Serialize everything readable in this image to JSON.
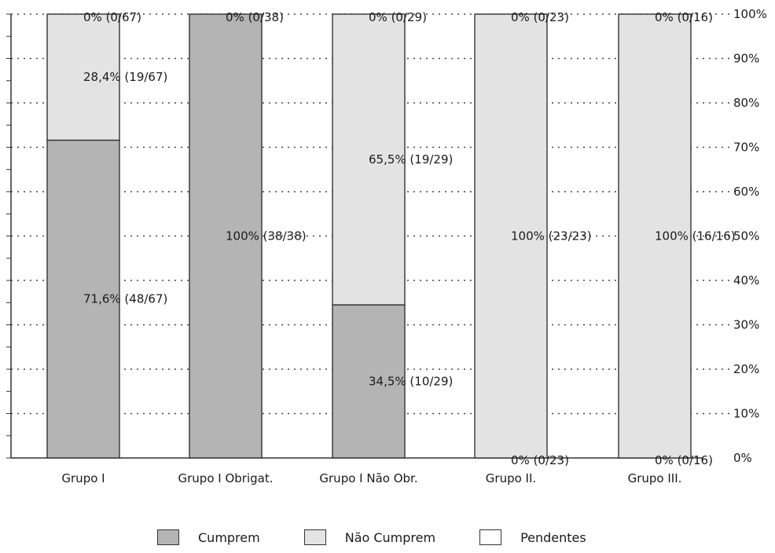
{
  "chart_data": {
    "type": "bar",
    "stacked": true,
    "percent_stacked": true,
    "categories": [
      "Grupo I",
      "Grupo I Obrigat.",
      "Grupo I Não Obr.",
      "Grupo II.",
      "Grupo III."
    ],
    "series": [
      {
        "name": "Cumprem",
        "color": "#b4b4b4",
        "values": [
          71.6,
          100,
          34.5,
          0,
          0
        ],
        "labels": [
          "71,6%  (48/67)",
          "100%  (38/38)",
          "34,5%  (10/29)",
          "0%  (0/23)",
          "0%  (0/16)"
        ]
      },
      {
        "name": "Não Cumprem",
        "color": "#e3e3e3",
        "values": [
          28.4,
          0,
          65.5,
          100,
          100
        ],
        "labels": [
          "28,4%  (19/67)",
          "",
          "65,5%  (19/29)",
          "100%  (23/23)",
          "100%  (16/16)"
        ]
      },
      {
        "name": "Pendentes",
        "color": "#ffffff",
        "values": [
          0,
          0,
          0,
          0,
          0
        ],
        "labels": [
          "0%  (0/67)",
          "0%  (0/38)",
          "0%  (0/29)",
          "0%  (0/23)",
          "0%  (0/16)"
        ]
      }
    ],
    "ylim": [
      0,
      100
    ],
    "yticks": [
      "0%",
      "10%",
      "20%",
      "30%",
      "40%",
      "50%",
      "60%",
      "70%",
      "80%",
      "90%",
      "100%"
    ],
    "grid": true,
    "legend_position": "bottom",
    "title": "",
    "xlabel": "",
    "ylabel": ""
  }
}
